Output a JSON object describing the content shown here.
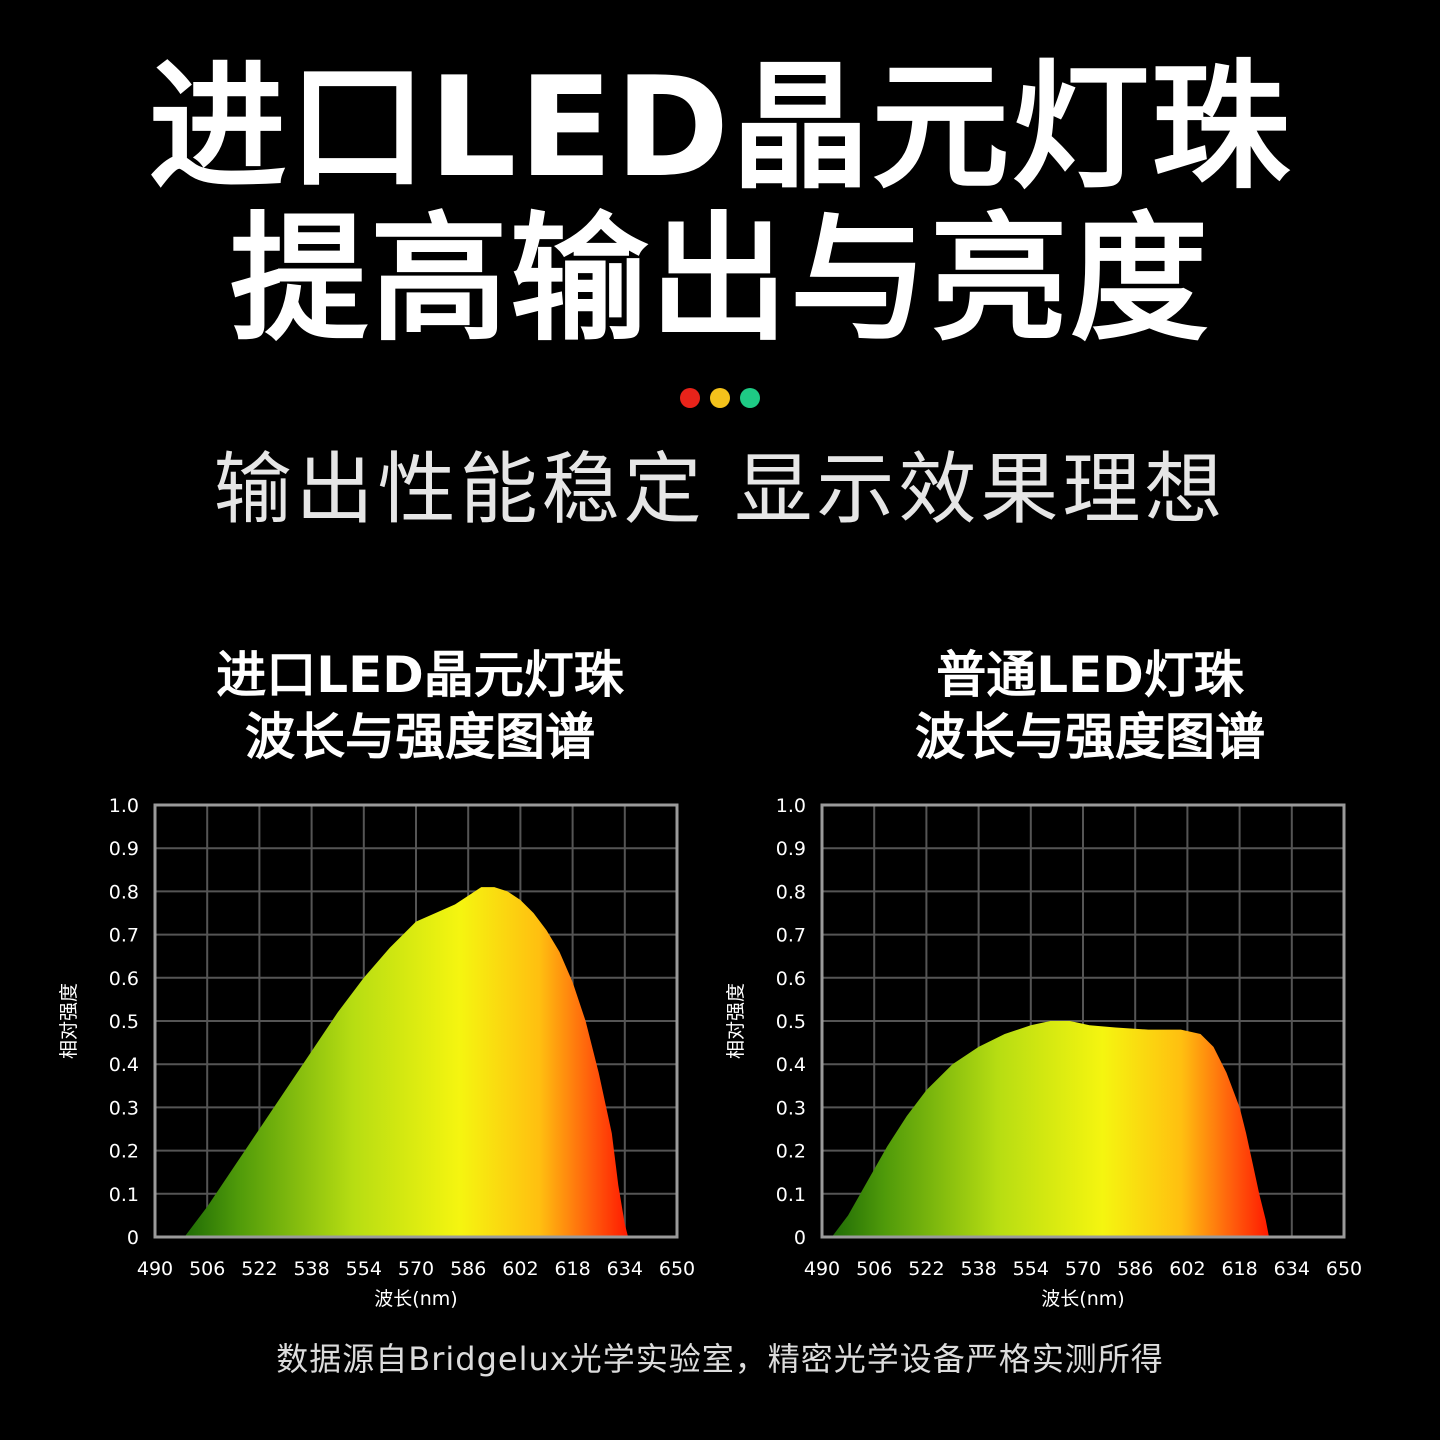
{
  "headline": {
    "line1": "进口LED晶元灯珠",
    "line2": "提高输出与亮度"
  },
  "dots": [
    "#e8231a",
    "#f4c21b",
    "#1ecb85"
  ],
  "subheadline": "输出性能稳定 显示效果理想",
  "footnote": "数据源自Bridgelux光学实验室，精密光学设备严格实测所得",
  "chart_data": [
    {
      "type": "area",
      "title": "进口LED晶元灯珠 波长与强度图谱",
      "title_lines": [
        "进口LED晶元灯珠",
        "波长与强度图谱"
      ],
      "xlabel": "波长(nm)",
      "ylabel": "相对强度",
      "xlim": [
        490,
        650
      ],
      "ylim": [
        0,
        1.0
      ],
      "x_ticks": [
        490,
        506,
        522,
        538,
        554,
        570,
        586,
        602,
        618,
        634,
        650
      ],
      "y_ticks": [
        "0",
        "0.1",
        "0.2",
        "0.3",
        "0.4",
        "0.5",
        "0.6",
        "0.7",
        "0.8",
        "0.9",
        "1.0"
      ],
      "grid": true,
      "x": [
        499,
        506,
        514,
        522,
        530,
        538,
        546,
        554,
        562,
        570,
        576,
        582,
        586,
        590,
        594,
        598,
        602,
        606,
        610,
        614,
        618,
        622,
        626,
        630,
        632,
        634,
        635
      ],
      "y": [
        0,
        0.07,
        0.16,
        0.25,
        0.34,
        0.43,
        0.52,
        0.6,
        0.67,
        0.73,
        0.75,
        0.77,
        0.79,
        0.81,
        0.81,
        0.8,
        0.78,
        0.75,
        0.71,
        0.66,
        0.59,
        0.5,
        0.38,
        0.24,
        0.12,
        0.03,
        0
      ]
    },
    {
      "type": "area",
      "title": "普通LED灯珠 波长与强度图谱",
      "title_lines": [
        "普通LED灯珠",
        "波长与强度图谱"
      ],
      "xlabel": "波长(nm)",
      "ylabel": "相对强度",
      "xlim": [
        490,
        650
      ],
      "ylim": [
        0,
        1.0
      ],
      "x_ticks": [
        490,
        506,
        522,
        538,
        554,
        570,
        586,
        602,
        618,
        634,
        650
      ],
      "y_ticks": [
        "0",
        "0.1",
        "0.2",
        "0.3",
        "0.4",
        "0.5",
        "0.6",
        "0.7",
        "0.8",
        "0.9",
        "1.0"
      ],
      "grid": true,
      "x": [
        493,
        498,
        504,
        510,
        516,
        522,
        530,
        538,
        546,
        554,
        560,
        566,
        572,
        580,
        590,
        600,
        606,
        610,
        614,
        618,
        620,
        622,
        624,
        626,
        627
      ],
      "y": [
        0,
        0.05,
        0.13,
        0.21,
        0.28,
        0.34,
        0.4,
        0.44,
        0.47,
        0.49,
        0.5,
        0.5,
        0.49,
        0.485,
        0.48,
        0.48,
        0.47,
        0.44,
        0.38,
        0.3,
        0.24,
        0.17,
        0.1,
        0.04,
        0
      ]
    }
  ]
}
